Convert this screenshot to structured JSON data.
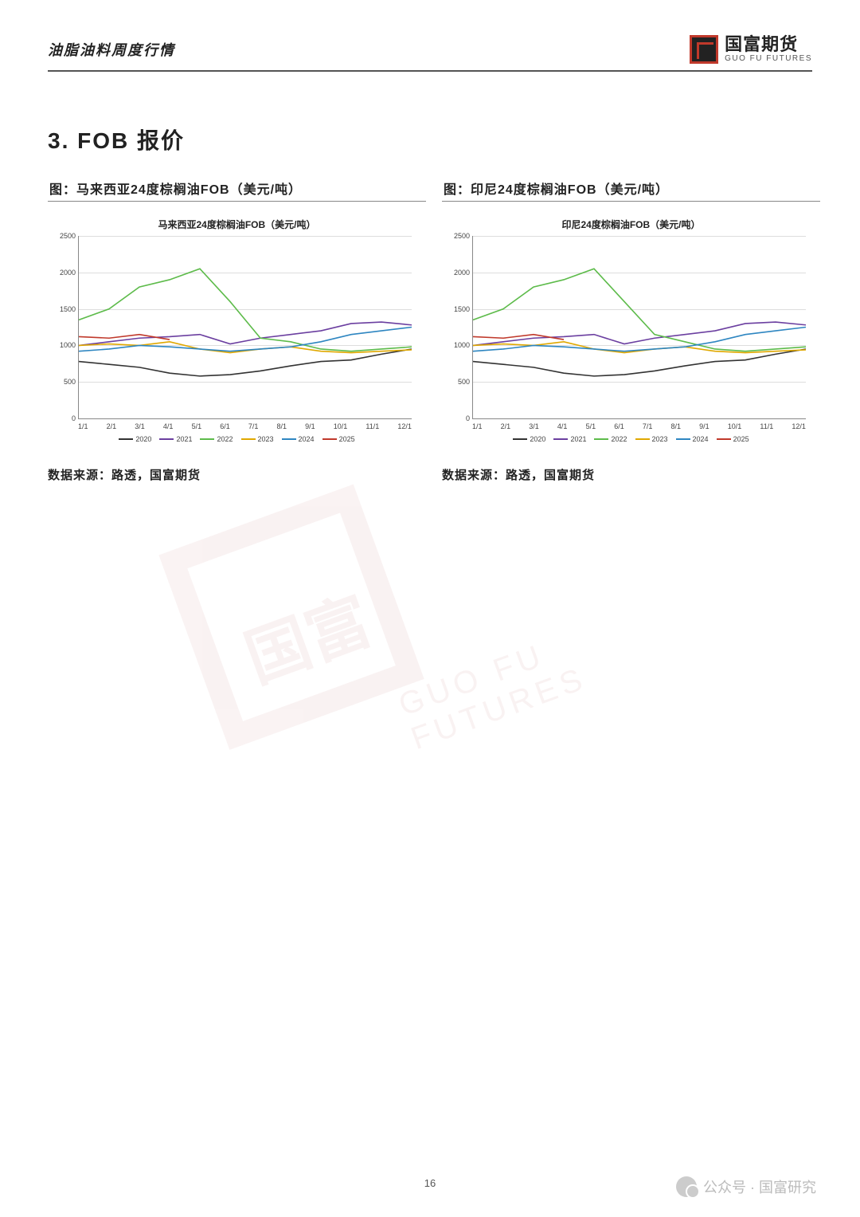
{
  "header": {
    "title": "油脂油料周度行情",
    "logo_cn": "国富期货",
    "logo_en": "GUO FU FUTURES"
  },
  "section_title": "3. FOB 报价",
  "page_number": "16",
  "footer": {
    "label": "公众号 · 国富研究"
  },
  "chart_common": {
    "ylim": [
      0,
      2500
    ],
    "ytick_step": 500,
    "yticks": [
      "0",
      "500",
      "1000",
      "1500",
      "2000",
      "2500"
    ],
    "xticks": [
      "1/1",
      "2/1",
      "3/1",
      "4/1",
      "5/1",
      "6/1",
      "7/1",
      "8/1",
      "9/1",
      "10/1",
      "11/1",
      "12/1"
    ],
    "grid_color": "#dddddd",
    "axis_color": "#888888",
    "tick_fontsize": 9,
    "legend_fontsize": 9,
    "series_meta": [
      {
        "name": "2020",
        "color": "#333333"
      },
      {
        "name": "2021",
        "color": "#6b3fa0"
      },
      {
        "name": "2022",
        "color": "#5dbb4a"
      },
      {
        "name": "2023",
        "color": "#e0a800"
      },
      {
        "name": "2024",
        "color": "#2e86c1"
      },
      {
        "name": "2025",
        "color": "#c0392b"
      }
    ]
  },
  "charts": [
    {
      "caption": "图：马来西亚24度棕榈油FOB（美元/吨）",
      "inner_title": "马来西亚24度棕榈油FOB（美元/吨）",
      "source": "数据来源：路透，国富期货",
      "type": "line",
      "series": {
        "2020": [
          780,
          740,
          700,
          620,
          580,
          600,
          650,
          720,
          780,
          800,
          880,
          950
        ],
        "2021": [
          1000,
          1050,
          1100,
          1120,
          1150,
          1020,
          1100,
          1150,
          1200,
          1300,
          1320,
          1280
        ],
        "2022": [
          1350,
          1500,
          1800,
          1900,
          2050,
          1600,
          1100,
          1050,
          950,
          920,
          950,
          980
        ],
        "2023": [
          1000,
          1020,
          1000,
          1050,
          950,
          900,
          950,
          980,
          920,
          900,
          920,
          940
        ],
        "2024": [
          920,
          950,
          1000,
          980,
          950,
          920,
          950,
          980,
          1050,
          1150,
          1200,
          1250
        ],
        "2025": [
          1120,
          1100,
          1150,
          1080
        ]
      }
    },
    {
      "caption": "图：印尼24度棕榈油FOB（美元/吨）",
      "inner_title": "印尼24度棕榈油FOB（美元/吨）",
      "source": "数据来源：路透，国富期货",
      "type": "line",
      "series": {
        "2020": [
          780,
          740,
          700,
          620,
          580,
          600,
          650,
          720,
          780,
          800,
          880,
          950
        ],
        "2021": [
          1000,
          1050,
          1100,
          1120,
          1150,
          1020,
          1100,
          1150,
          1200,
          1300,
          1320,
          1280
        ],
        "2022": [
          1350,
          1500,
          1800,
          1900,
          2050,
          1600,
          1150,
          1050,
          950,
          920,
          950,
          980
        ],
        "2023": [
          1000,
          1020,
          1000,
          1050,
          950,
          900,
          950,
          980,
          920,
          900,
          920,
          940
        ],
        "2024": [
          920,
          950,
          1000,
          980,
          950,
          920,
          950,
          980,
          1050,
          1150,
          1200,
          1250
        ],
        "2025": [
          1120,
          1100,
          1150,
          1080
        ]
      }
    }
  ]
}
